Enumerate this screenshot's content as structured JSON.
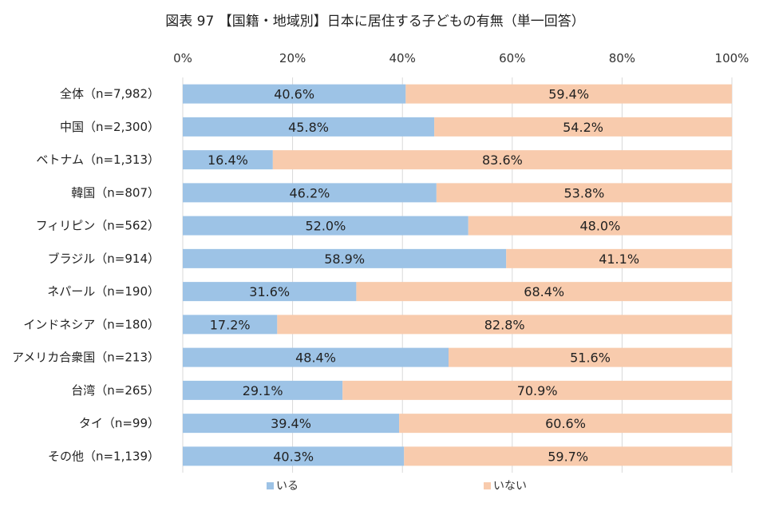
{
  "chart_data": {
    "type": "bar",
    "orientation": "horizontal",
    "stacked": true,
    "percent_stacked": true,
    "title": "図表 97 【国籍・地域別】日本に居住する子どもの有無（単一回答）",
    "xlim": [
      0,
      100
    ],
    "x_ticks": [
      "0%",
      "20%",
      "40%",
      "60%",
      "80%",
      "100%"
    ],
    "x_tick_values": [
      0,
      20,
      40,
      60,
      80,
      100
    ],
    "grid": "vertical",
    "legend": "bottom",
    "categories": [
      "全体（n=7,982）",
      "中国（n=2,300）",
      "ベトナム（n=1,313）",
      "韓国（n=807）",
      "フィリピン（n=562）",
      "ブラジル（n=914）",
      "ネパール（n=190）",
      "インドネシア（n=180）",
      "アメリカ合衆国（n=213）",
      "台湾（n=265）",
      "タイ（n=99）",
      "その他（n=1,139）"
    ],
    "series": [
      {
        "name": "いる",
        "color": "#9dc3e6",
        "values": [
          40.6,
          45.8,
          16.4,
          46.2,
          52.0,
          58.9,
          31.6,
          17.2,
          48.4,
          29.1,
          39.4,
          40.3
        ],
        "labels": [
          "40.6%",
          "45.8%",
          "16.4%",
          "46.2%",
          "52.0%",
          "58.9%",
          "31.6%",
          "17.2%",
          "48.4%",
          "29.1%",
          "39.4%",
          "40.3%"
        ]
      },
      {
        "name": "いない",
        "color": "#f8cbad",
        "values": [
          59.4,
          54.2,
          83.6,
          53.8,
          48.0,
          41.1,
          68.4,
          82.8,
          51.6,
          70.9,
          60.6,
          59.7
        ],
        "labels": [
          "59.4%",
          "54.2%",
          "83.6%",
          "53.8%",
          "48.0%",
          "41.1%",
          "68.4%",
          "82.8%",
          "51.6%",
          "70.9%",
          "60.6%",
          "59.7%"
        ]
      }
    ]
  }
}
